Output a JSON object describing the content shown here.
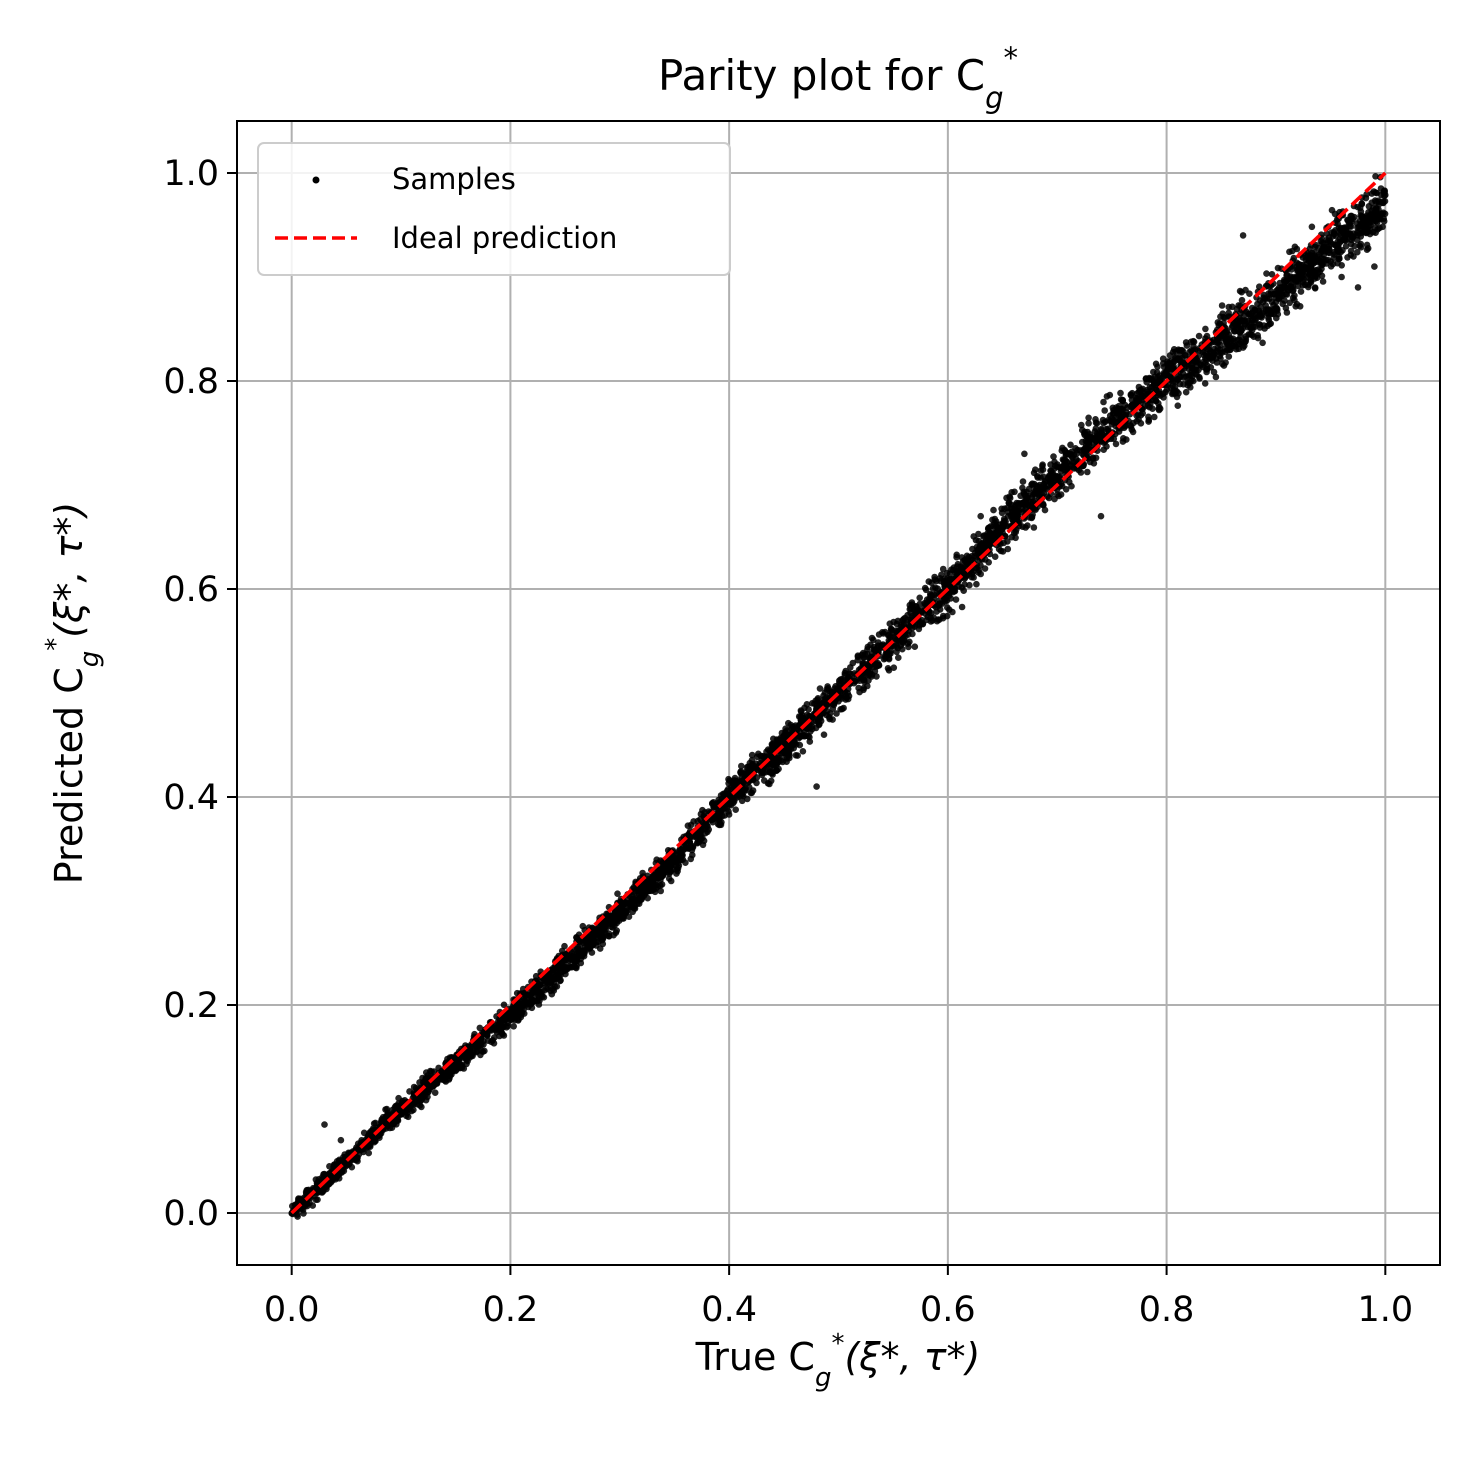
{
  "chart_data": {
    "type": "scatter",
    "title": "Parity plot for C",
    "title_sub": "g",
    "title_sup": "*",
    "xlabel": {
      "prefix": "True C",
      "sub": "g",
      "sup": "*",
      "args": "(ξ*, τ*)"
    },
    "ylabel": {
      "prefix": "Predicted C",
      "sub": "g",
      "sup": "*",
      "args": "(ξ*, τ*)"
    },
    "xlim": [
      -0.05,
      1.05
    ],
    "ylim": [
      -0.05,
      1.05
    ],
    "xticks": [
      "0.0",
      "0.2",
      "0.4",
      "0.6",
      "0.8",
      "1.0"
    ],
    "yticks": [
      "0.0",
      "0.2",
      "0.4",
      "0.6",
      "0.8",
      "1.0"
    ],
    "grid": true,
    "legend": {
      "position": "top-left",
      "entries": [
        "Samples",
        "Ideal prediction"
      ]
    },
    "series": [
      {
        "name": "Samples",
        "kind": "scatter",
        "color": "#000000",
        "description_points": [
          [
            0.0,
            0.0
          ],
          [
            0.05,
            0.05
          ],
          [
            0.1,
            0.1
          ],
          [
            0.15,
            0.145
          ],
          [
            0.2,
            0.19
          ],
          [
            0.25,
            0.24
          ],
          [
            0.3,
            0.29
          ],
          [
            0.35,
            0.34
          ],
          [
            0.4,
            0.4
          ],
          [
            0.45,
            0.45
          ],
          [
            0.5,
            0.5
          ],
          [
            0.55,
            0.55
          ],
          [
            0.6,
            0.6
          ],
          [
            0.65,
            0.66
          ],
          [
            0.7,
            0.71
          ],
          [
            0.75,
            0.76
          ],
          [
            0.8,
            0.8
          ],
          [
            0.85,
            0.84
          ],
          [
            0.9,
            0.88
          ],
          [
            0.95,
            0.93
          ],
          [
            1.0,
            0.97
          ]
        ],
        "outliers": [
          [
            0.03,
            0.085
          ],
          [
            0.045,
            0.07
          ],
          [
            0.48,
            0.41
          ],
          [
            0.61,
            0.615
          ],
          [
            0.63,
            0.67
          ],
          [
            0.67,
            0.73
          ],
          [
            0.74,
            0.67
          ],
          [
            0.87,
            0.94
          ],
          [
            0.99,
            0.91
          ],
          [
            0.96,
            0.9
          ],
          [
            0.975,
            0.89
          ],
          [
            0.94,
            0.905
          ]
        ]
      },
      {
        "name": "Ideal prediction",
        "kind": "line",
        "style": "dashed",
        "color": "#ff0000",
        "x": [
          0.0,
          1.0
        ],
        "y": [
          0.0,
          1.0
        ]
      }
    ]
  }
}
